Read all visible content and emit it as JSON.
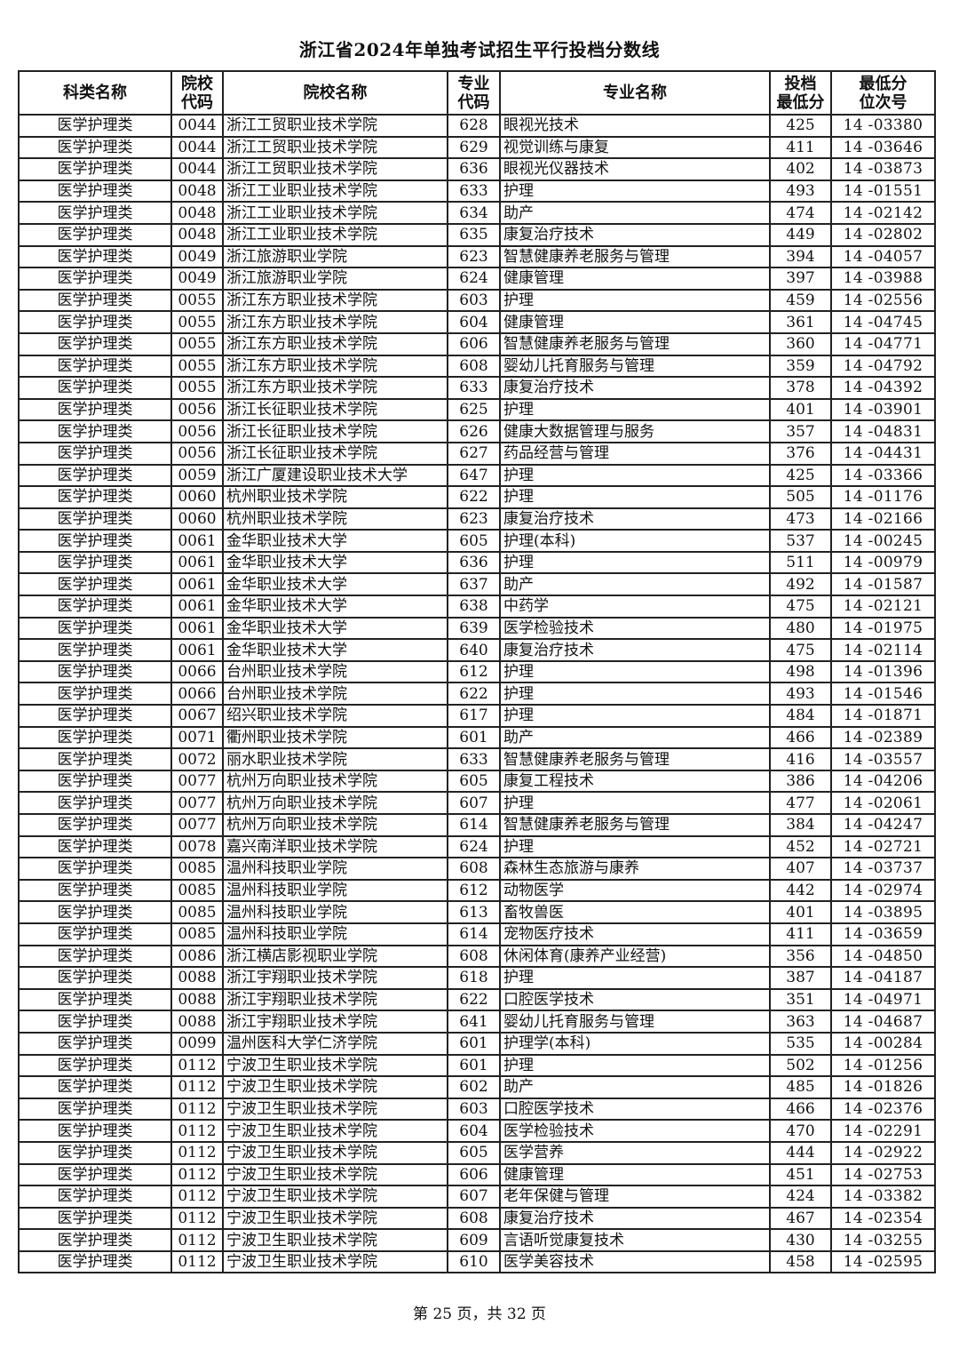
{
  "title": "浙江省2024年单独考试招生平行投档分数线",
  "table": {
    "headers": [
      "科类名称",
      "院校\n代码",
      "院校名称",
      "专业\n代码",
      "专业名称",
      "投档\n最低分",
      "最低分\n位次号"
    ],
    "rows": [
      [
        "医学护理类",
        "0044",
        "浙江工贸职业技术学院",
        "628",
        "眼视光技术",
        "425",
        "14 -03380"
      ],
      [
        "医学护理类",
        "0044",
        "浙江工贸职业技术学院",
        "629",
        "视觉训练与康复",
        "411",
        "14 -03646"
      ],
      [
        "医学护理类",
        "0044",
        "浙江工贸职业技术学院",
        "636",
        "眼视光仪器技术",
        "402",
        "14 -03873"
      ],
      [
        "医学护理类",
        "0048",
        "浙江工业职业技术学院",
        "633",
        "护理",
        "493",
        "14 -01551"
      ],
      [
        "医学护理类",
        "0048",
        "浙江工业职业技术学院",
        "634",
        "助产",
        "474",
        "14 -02142"
      ],
      [
        "医学护理类",
        "0048",
        "浙江工业职业技术学院",
        "635",
        "康复治疗技术",
        "449",
        "14 -02802"
      ],
      [
        "医学护理类",
        "0049",
        "浙江旅游职业学院",
        "623",
        "智慧健康养老服务与管理",
        "394",
        "14 -04057"
      ],
      [
        "医学护理类",
        "0049",
        "浙江旅游职业学院",
        "624",
        "健康管理",
        "397",
        "14 -03988"
      ],
      [
        "医学护理类",
        "0055",
        "浙江东方职业技术学院",
        "603",
        "护理",
        "459",
        "14 -02556"
      ],
      [
        "医学护理类",
        "0055",
        "浙江东方职业技术学院",
        "604",
        "健康管理",
        "361",
        "14 -04745"
      ],
      [
        "医学护理类",
        "0055",
        "浙江东方职业技术学院",
        "606",
        "智慧健康养老服务与管理",
        "360",
        "14 -04771"
      ],
      [
        "医学护理类",
        "0055",
        "浙江东方职业技术学院",
        "608",
        "婴幼儿托育服务与管理",
        "359",
        "14 -04792"
      ],
      [
        "医学护理类",
        "0055",
        "浙江东方职业技术学院",
        "633",
        "康复治疗技术",
        "378",
        "14 -04392"
      ],
      [
        "医学护理类",
        "0056",
        "浙江长征职业技术学院",
        "625",
        "护理",
        "401",
        "14 -03901"
      ],
      [
        "医学护理类",
        "0056",
        "浙江长征职业技术学院",
        "626",
        "健康大数据管理与服务",
        "357",
        "14 -04831"
      ],
      [
        "医学护理类",
        "0056",
        "浙江长征职业技术学院",
        "627",
        "药品经营与管理",
        "376",
        "14 -04431"
      ],
      [
        "医学护理类",
        "0059",
        "浙江广厦建设职业技术大学",
        "647",
        "护理",
        "425",
        "14 -03366"
      ],
      [
        "医学护理类",
        "0060",
        "杭州职业技术学院",
        "622",
        "护理",
        "505",
        "14 -01176"
      ],
      [
        "医学护理类",
        "0060",
        "杭州职业技术学院",
        "623",
        "康复治疗技术",
        "473",
        "14 -02166"
      ],
      [
        "医学护理类",
        "0061",
        "金华职业技术大学",
        "605",
        "护理(本科)",
        "537",
        "14 -00245"
      ],
      [
        "医学护理类",
        "0061",
        "金华职业技术大学",
        "636",
        "护理",
        "511",
        "14 -00979"
      ],
      [
        "医学护理类",
        "0061",
        "金华职业技术大学",
        "637",
        "助产",
        "492",
        "14 -01587"
      ],
      [
        "医学护理类",
        "0061",
        "金华职业技术大学",
        "638",
        "中药学",
        "475",
        "14 -02121"
      ],
      [
        "医学护理类",
        "0061",
        "金华职业技术大学",
        "639",
        "医学检验技术",
        "480",
        "14 -01975"
      ],
      [
        "医学护理类",
        "0061",
        "金华职业技术大学",
        "640",
        "康复治疗技术",
        "475",
        "14 -02114"
      ],
      [
        "医学护理类",
        "0066",
        "台州职业技术学院",
        "612",
        "护理",
        "498",
        "14 -01396"
      ],
      [
        "医学护理类",
        "0066",
        "台州职业技术学院",
        "622",
        "护理",
        "493",
        "14 -01546"
      ],
      [
        "医学护理类",
        "0067",
        "绍兴职业技术学院",
        "617",
        "护理",
        "484",
        "14 -01871"
      ],
      [
        "医学护理类",
        "0071",
        "衢州职业技术学院",
        "601",
        "助产",
        "466",
        "14 -02389"
      ],
      [
        "医学护理类",
        "0072",
        "丽水职业技术学院",
        "633",
        "智慧健康养老服务与管理",
        "416",
        "14 -03557"
      ],
      [
        "医学护理类",
        "0077",
        "杭州万向职业技术学院",
        "605",
        "康复工程技术",
        "386",
        "14 -04206"
      ],
      [
        "医学护理类",
        "0077",
        "杭州万向职业技术学院",
        "607",
        "护理",
        "477",
        "14 -02061"
      ],
      [
        "医学护理类",
        "0077",
        "杭州万向职业技术学院",
        "614",
        "智慧健康养老服务与管理",
        "384",
        "14 -04247"
      ],
      [
        "医学护理类",
        "0078",
        "嘉兴南洋职业技术学院",
        "624",
        "护理",
        "452",
        "14 -02721"
      ],
      [
        "医学护理类",
        "0085",
        "温州科技职业学院",
        "608",
        "森林生态旅游与康养",
        "407",
        "14 -03737"
      ],
      [
        "医学护理类",
        "0085",
        "温州科技职业学院",
        "612",
        "动物医学",
        "442",
        "14 -02974"
      ],
      [
        "医学护理类",
        "0085",
        "温州科技职业学院",
        "613",
        "畜牧兽医",
        "401",
        "14 -03895"
      ],
      [
        "医学护理类",
        "0085",
        "温州科技职业学院",
        "614",
        "宠物医疗技术",
        "411",
        "14 -03659"
      ],
      [
        "医学护理类",
        "0086",
        "浙江横店影视职业学院",
        "608",
        "休闲体育(康养产业经营)",
        "356",
        "14 -04850"
      ],
      [
        "医学护理类",
        "0088",
        "浙江宇翔职业技术学院",
        "618",
        "护理",
        "387",
        "14 -04187"
      ],
      [
        "医学护理类",
        "0088",
        "浙江宇翔职业技术学院",
        "622",
        "口腔医学技术",
        "351",
        "14 -04971"
      ],
      [
        "医学护理类",
        "0088",
        "浙江宇翔职业技术学院",
        "641",
        "婴幼儿托育服务与管理",
        "363",
        "14 -04687"
      ],
      [
        "医学护理类",
        "0099",
        "温州医科大学仁济学院",
        "601",
        "护理学(本科)",
        "535",
        "14 -00284"
      ],
      [
        "医学护理类",
        "0112",
        "宁波卫生职业技术学院",
        "601",
        "护理",
        "502",
        "14 -01256"
      ],
      [
        "医学护理类",
        "0112",
        "宁波卫生职业技术学院",
        "602",
        "助产",
        "485",
        "14 -01826"
      ],
      [
        "医学护理类",
        "0112",
        "宁波卫生职业技术学院",
        "603",
        "口腔医学技术",
        "466",
        "14 -02376"
      ],
      [
        "医学护理类",
        "0112",
        "宁波卫生职业技术学院",
        "604",
        "医学检验技术",
        "470",
        "14 -02291"
      ],
      [
        "医学护理类",
        "0112",
        "宁波卫生职业技术学院",
        "605",
        "医学营养",
        "444",
        "14 -02922"
      ],
      [
        "医学护理类",
        "0112",
        "宁波卫生职业技术学院",
        "606",
        "健康管理",
        "451",
        "14 -02753"
      ],
      [
        "医学护理类",
        "0112",
        "宁波卫生职业技术学院",
        "607",
        "老年保健与管理",
        "424",
        "14 -03382"
      ],
      [
        "医学护理类",
        "0112",
        "宁波卫生职业技术学院",
        "608",
        "康复治疗技术",
        "467",
        "14 -02354"
      ],
      [
        "医学护理类",
        "0112",
        "宁波卫生职业技术学院",
        "609",
        "言语听觉康复技术",
        "430",
        "14 -03255"
      ],
      [
        "医学护理类",
        "0112",
        "宁波卫生职业技术学院",
        "610",
        "医学美容技术",
        "458",
        "14 -02595"
      ]
    ]
  },
  "footer": "第 25 页，共 32 页"
}
